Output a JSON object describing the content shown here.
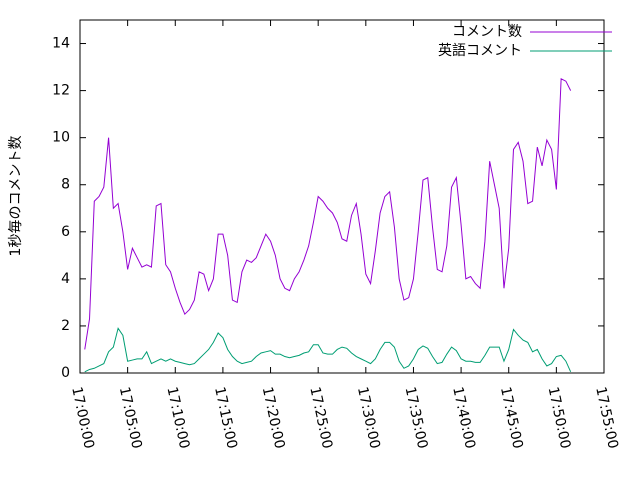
{
  "chart_data": {
    "type": "line",
    "y_label": "1秒毎のコメント数",
    "x": [
      "17:00:30",
      "17:01:00",
      "17:01:30",
      "17:02:00",
      "17:02:30",
      "17:03:00",
      "17:03:30",
      "17:04:00",
      "17:04:30",
      "17:05:00",
      "17:05:30",
      "17:06:00",
      "17:06:30",
      "17:07:00",
      "17:07:30",
      "17:08:00",
      "17:08:30",
      "17:09:00",
      "17:09:30",
      "17:10:00",
      "17:10:30",
      "17:11:00",
      "17:11:30",
      "17:12:00",
      "17:12:30",
      "17:13:00",
      "17:13:30",
      "17:14:00",
      "17:14:30",
      "17:15:00",
      "17:15:30",
      "17:16:00",
      "17:16:30",
      "17:17:00",
      "17:17:30",
      "17:18:00",
      "17:18:30",
      "17:19:00",
      "17:19:30",
      "17:20:00",
      "17:20:30",
      "17:21:00",
      "17:21:30",
      "17:22:00",
      "17:22:30",
      "17:23:00",
      "17:23:30",
      "17:24:00",
      "17:24:30",
      "17:25:00",
      "17:25:30",
      "17:26:00",
      "17:26:30",
      "17:27:00",
      "17:27:30",
      "17:28:00",
      "17:28:30",
      "17:29:00",
      "17:29:30",
      "17:30:00",
      "17:30:30",
      "17:31:00",
      "17:31:30",
      "17:32:00",
      "17:32:30",
      "17:33:00",
      "17:33:30",
      "17:34:00",
      "17:34:30",
      "17:35:00",
      "17:35:30",
      "17:36:00",
      "17:36:30",
      "17:37:00",
      "17:37:30",
      "17:38:00",
      "17:38:30",
      "17:39:00",
      "17:39:30",
      "17:40:00",
      "17:40:30",
      "17:41:00",
      "17:41:30",
      "17:42:00",
      "17:42:30",
      "17:43:00",
      "17:43:30",
      "17:44:00",
      "17:44:30",
      "17:45:00",
      "17:45:30",
      "17:46:00",
      "17:46:30",
      "17:47:00",
      "17:47:30",
      "17:48:00",
      "17:48:30",
      "17:49:00",
      "17:49:30",
      "17:50:00",
      "17:50:30",
      "17:51:00",
      "17:51:30"
    ],
    "series": [
      {
        "name": "コメント数",
        "color": "#9400d3",
        "values": [
          1.0,
          2.3,
          7.3,
          7.5,
          7.9,
          10.0,
          7.0,
          7.2,
          6.0,
          4.4,
          5.3,
          4.9,
          4.5,
          4.6,
          4.5,
          7.1,
          7.2,
          4.6,
          4.3,
          3.6,
          3.0,
          2.5,
          2.7,
          3.1,
          4.3,
          4.2,
          3.5,
          4.0,
          5.9,
          5.9,
          5.0,
          3.1,
          3.0,
          4.3,
          4.8,
          4.7,
          4.9,
          5.4,
          5.9,
          5.6,
          5.0,
          4.0,
          3.6,
          3.5,
          4.0,
          4.3,
          4.8,
          5.4,
          6.4,
          7.5,
          7.3,
          7.0,
          6.8,
          6.4,
          5.7,
          5.6,
          6.7,
          7.2,
          5.9,
          4.2,
          3.8,
          5.2,
          6.8,
          7.5,
          7.7,
          6.2,
          4.0,
          3.1,
          3.2,
          4.0,
          6.0,
          8.2,
          8.3,
          6.2,
          4.4,
          4.3,
          5.4,
          7.9,
          8.3,
          6.3,
          4.0,
          4.1,
          3.8,
          3.6,
          5.6,
          9.0,
          8.0,
          7.0,
          3.6,
          5.3,
          9.5,
          9.8,
          9.0,
          7.2,
          7.3,
          9.6,
          8.8,
          9.9,
          9.5,
          7.8,
          12.5,
          12.4,
          12.0
        ]
      },
      {
        "name": "英語コメント",
        "color": "#009e73",
        "values": [
          0.05,
          0.15,
          0.2,
          0.3,
          0.4,
          0.9,
          1.1,
          1.9,
          1.6,
          0.5,
          0.55,
          0.6,
          0.6,
          0.9,
          0.4,
          0.5,
          0.6,
          0.5,
          0.6,
          0.5,
          0.45,
          0.4,
          0.35,
          0.4,
          0.6,
          0.8,
          1.0,
          1.3,
          1.7,
          1.5,
          1.0,
          0.7,
          0.5,
          0.4,
          0.45,
          0.5,
          0.7,
          0.85,
          0.9,
          0.95,
          0.8,
          0.8,
          0.7,
          0.65,
          0.7,
          0.75,
          0.85,
          0.9,
          1.2,
          1.2,
          0.85,
          0.8,
          0.8,
          1.0,
          1.1,
          1.05,
          0.85,
          0.7,
          0.6,
          0.5,
          0.4,
          0.6,
          1.0,
          1.3,
          1.3,
          1.1,
          0.5,
          0.2,
          0.3,
          0.6,
          1.0,
          1.15,
          1.05,
          0.7,
          0.4,
          0.45,
          0.8,
          1.1,
          0.95,
          0.6,
          0.5,
          0.5,
          0.45,
          0.45,
          0.75,
          1.1,
          1.1,
          1.1,
          0.5,
          1.0,
          1.85,
          1.6,
          1.4,
          1.3,
          0.9,
          1.0,
          0.6,
          0.3,
          0.4,
          0.7,
          0.75,
          0.5,
          0.05
        ]
      }
    ],
    "xlim": [
      "17:00:00",
      "17:55:00"
    ],
    "xticks": [
      "17:00:00",
      "17:05:00",
      "17:10:00",
      "17:15:00",
      "17:20:00",
      "17:25:00",
      "17:30:00",
      "17:35:00",
      "17:40:00",
      "17:45:00",
      "17:50:00",
      "17:55:00"
    ],
    "ylim": [
      0,
      15
    ],
    "yticks": [
      0,
      2,
      4,
      6,
      8,
      10,
      12,
      14
    ],
    "grid": false,
    "legend": "top right"
  }
}
